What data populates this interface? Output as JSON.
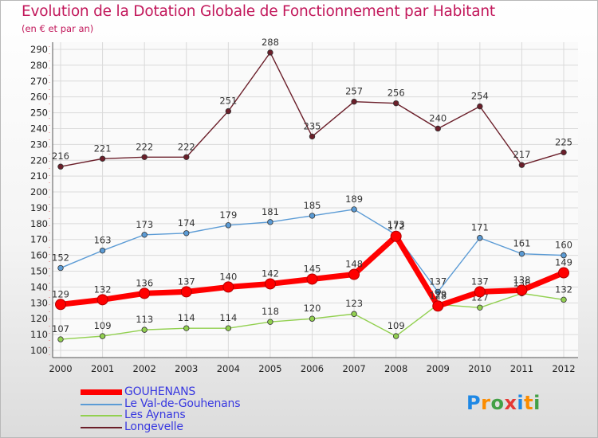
{
  "chart_data": {
    "type": "line",
    "title": "Evolution de la Dotation Globale de Fonctionnement par Habitant",
    "subtitle": "(en € et par an)",
    "xlabel": "",
    "ylabel": "",
    "ylim": [
      100,
      290
    ],
    "ystep": 10,
    "categories": [
      "2000",
      "2001",
      "2002",
      "2003",
      "2004",
      "2005",
      "2006",
      "2007",
      "2008",
      "2009",
      "2010",
      "2011",
      "2012"
    ],
    "series": [
      {
        "name": "Longevelle",
        "color": "#6b1f2a",
        "values": [
          216,
          221,
          222,
          222,
          251,
          288,
          235,
          257,
          256,
          240,
          254,
          217,
          225
        ]
      },
      {
        "name": "Le Val-de-Gouhenans",
        "color": "#5b9bd5",
        "values": [
          152,
          163,
          173,
          174,
          179,
          181,
          185,
          189,
          173,
          137,
          171,
          161,
          160
        ]
      },
      {
        "name": "Les Aynans",
        "color": "#92d050",
        "values": [
          107,
          109,
          113,
          114,
          114,
          118,
          120,
          123,
          109,
          129,
          127,
          136,
          132
        ]
      },
      {
        "name": "GOUHENANS",
        "color": "#ff0000",
        "values": [
          129,
          132,
          136,
          137,
          140,
          142,
          145,
          148,
          172,
          128,
          137,
          138,
          149
        ]
      }
    ]
  },
  "legend": [
    {
      "name": "GOUHENANS",
      "color": "#ff0000",
      "thickness": 7
    },
    {
      "name": "Le Val-de-Gouhenans",
      "color": "#5b9bd5",
      "thickness": 2
    },
    {
      "name": "Les Aynans",
      "color": "#92d050",
      "thickness": 2
    },
    {
      "name": "Longevelle",
      "color": "#6b1f2a",
      "thickness": 2
    }
  ],
  "logo": [
    "P",
    "r",
    "o",
    "x",
    "i",
    "t",
    "i"
  ]
}
